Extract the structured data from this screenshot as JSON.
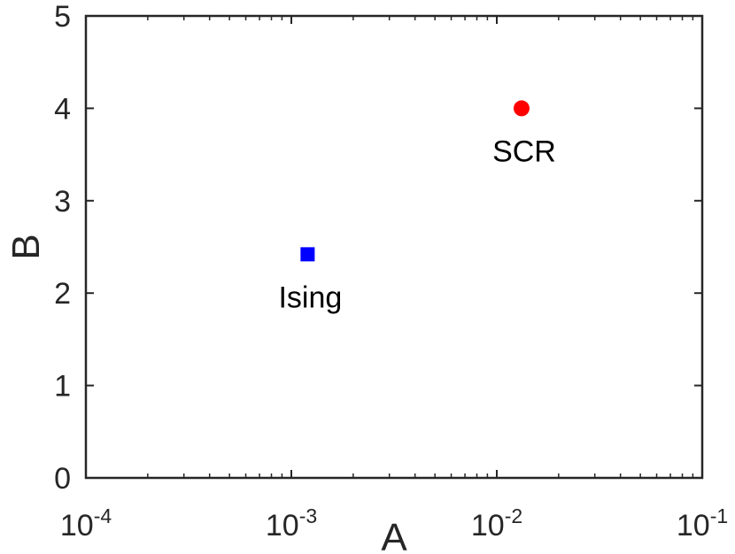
{
  "chart_data": {
    "type": "scatter",
    "title": "",
    "xlabel": "A",
    "ylabel": "B",
    "xscale": "log",
    "xlim": [
      0.0001,
      0.1
    ],
    "ylim": [
      0,
      5
    ],
    "grid": false,
    "x_ticks": [
      {
        "value": 0.0001,
        "base": "10",
        "exp": "-4"
      },
      {
        "value": 0.001,
        "base": "10",
        "exp": "-3"
      },
      {
        "value": 0.01,
        "base": "10",
        "exp": "-2"
      },
      {
        "value": 0.1,
        "base": "10",
        "exp": "-1"
      }
    ],
    "y_ticks": [
      0,
      1,
      2,
      3,
      4,
      5
    ],
    "points": [
      {
        "label": "Ising",
        "x": 0.0012,
        "y": 2.42,
        "marker": "square",
        "color": "#0000ff"
      },
      {
        "label": "SCR",
        "x": 0.0132,
        "y": 4.0,
        "marker": "circle",
        "color": "#ff0000"
      }
    ]
  }
}
